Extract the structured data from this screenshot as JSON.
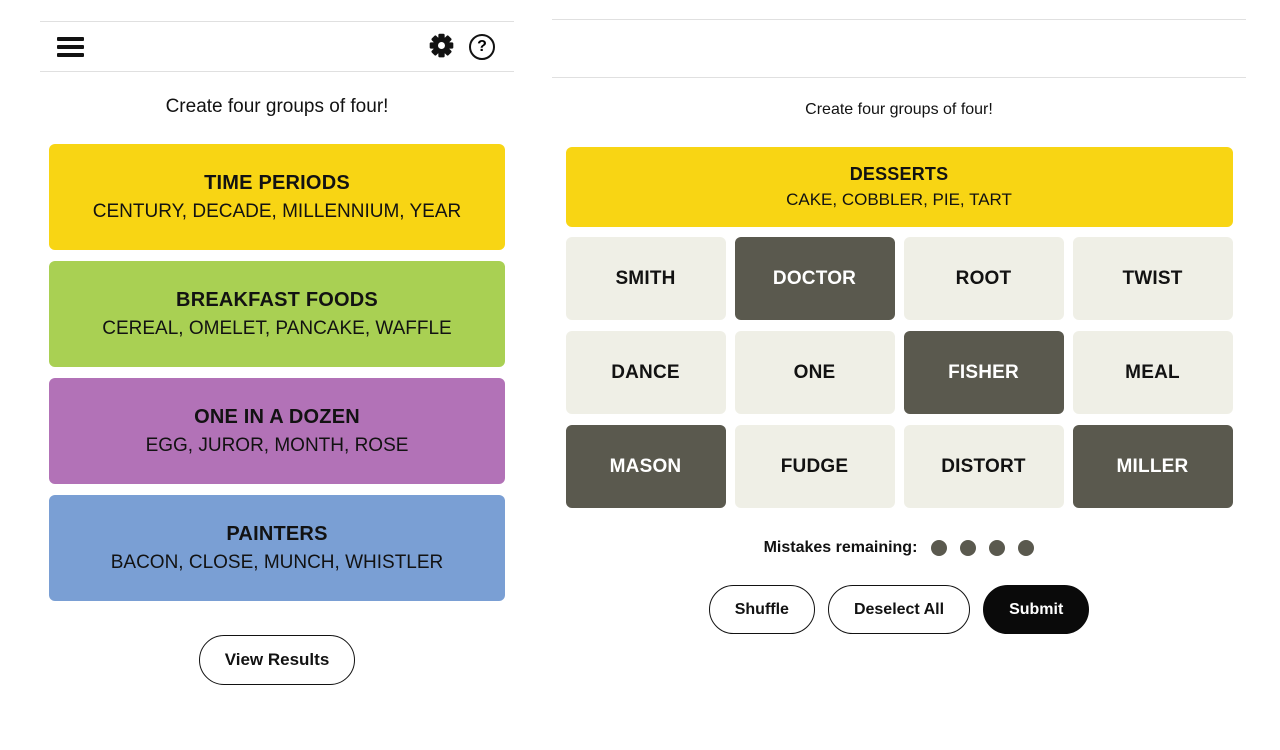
{
  "colors": {
    "yellow": "#F8D514",
    "green": "#A9D053",
    "purple": "#B272B7",
    "blue": "#7A9FD4",
    "tile_default": "#EFEFE6",
    "tile_selected": "#5A594E",
    "dot": "#5A594E",
    "divider": "#E0E0E0"
  },
  "left_panel": {
    "toolbar_icons": [
      "hamburger-icon",
      "gear-icon",
      "help-icon"
    ],
    "help_glyph": "?",
    "prompt": "Create four groups of four!",
    "groups": [
      {
        "title": "TIME PERIODS",
        "words": "CENTURY, DECADE, MILLENNIUM, YEAR",
        "color": "#F8D514"
      },
      {
        "title": "BREAKFAST FOODS",
        "words": "CEREAL, OMELET, PANCAKE, WAFFLE",
        "color": "#A9D053"
      },
      {
        "title": "ONE IN A DOZEN",
        "words": "EGG, JUROR, MONTH, ROSE",
        "color": "#B272B7"
      },
      {
        "title": "PAINTERS",
        "words": "BACON, CLOSE, MUNCH, WHISTLER",
        "color": "#7A9FD4"
      }
    ],
    "view_results_label": "View Results"
  },
  "right_panel": {
    "prompt": "Create four groups of four!",
    "solved_group": {
      "title": "DESSERTS",
      "words": "CAKE, COBBLER, PIE, TART",
      "color": "#F8D514"
    },
    "tiles": [
      {
        "label": "SMITH",
        "selected": false
      },
      {
        "label": "DOCTOR",
        "selected": true
      },
      {
        "label": "ROOT",
        "selected": false
      },
      {
        "label": "TWIST",
        "selected": false
      },
      {
        "label": "DANCE",
        "selected": false
      },
      {
        "label": "ONE",
        "selected": false
      },
      {
        "label": "FISHER",
        "selected": true
      },
      {
        "label": "MEAL",
        "selected": false
      },
      {
        "label": "MASON",
        "selected": true
      },
      {
        "label": "FUDGE",
        "selected": false
      },
      {
        "label": "DISTORT",
        "selected": false
      },
      {
        "label": "MILLER",
        "selected": true
      }
    ],
    "mistakes": {
      "label": "Mistakes remaining:",
      "remaining": 4
    },
    "buttons": {
      "shuffle": "Shuffle",
      "deselect": "Deselect All",
      "submit": "Submit"
    }
  }
}
